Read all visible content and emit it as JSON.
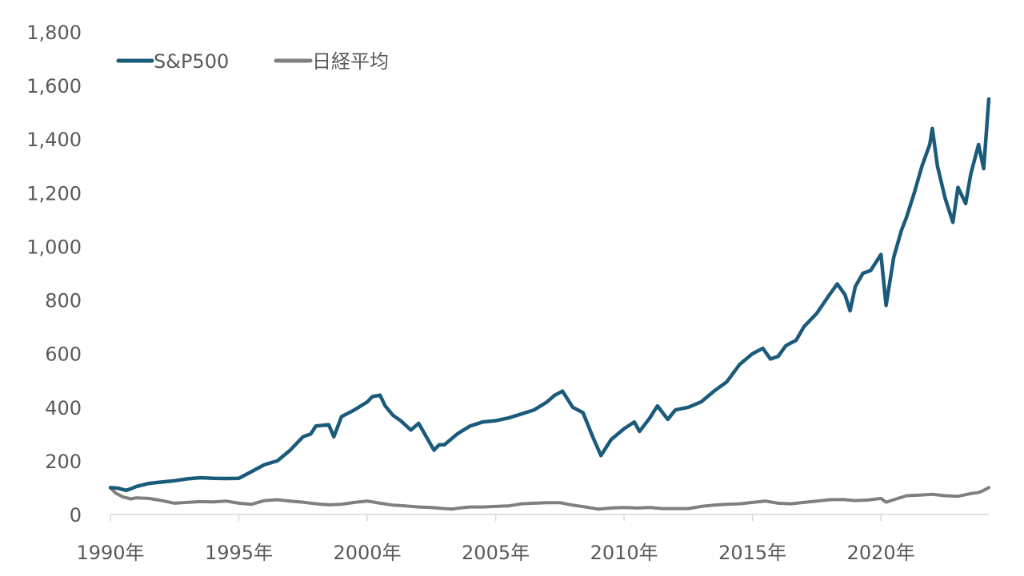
{
  "chart_data": {
    "type": "line",
    "xlabel": "",
    "ylabel": "",
    "ylim": [
      0,
      1800
    ],
    "xlim": [
      1990,
      2024.2
    ],
    "grid": false,
    "legend_position": "top-left",
    "y_ticks": [
      "0",
      "200",
      "400",
      "600",
      "800",
      "1,000",
      "1,200",
      "1,400",
      "1,600",
      "1,800"
    ],
    "y_tick_values": [
      0,
      200,
      400,
      600,
      800,
      1000,
      1200,
      1400,
      1600,
      1800
    ],
    "x_ticks": [
      "1990年",
      "1995年",
      "2000年",
      "2005年",
      "2010年",
      "2015年",
      "2020年"
    ],
    "x_tick_values": [
      1990,
      1995,
      2000,
      2005,
      2010,
      2015,
      2020
    ],
    "series": [
      {
        "name": "S&P500",
        "color": "#1a5a7a",
        "x": [
          1990.0,
          1990.3,
          1990.6,
          1990.8,
          1991.0,
          1991.5,
          1992.0,
          1992.5,
          1993.0,
          1993.5,
          1994.0,
          1994.5,
          1995.0,
          1995.5,
          1996.0,
          1996.5,
          1997.0,
          1997.5,
          1997.8,
          1998.0,
          1998.5,
          1998.7,
          1999.0,
          1999.5,
          2000.0,
          2000.2,
          2000.5,
          2000.7,
          2001.0,
          2001.3,
          2001.7,
          2002.0,
          2002.3,
          2002.6,
          2002.8,
          2003.0,
          2003.5,
          2004.0,
          2004.5,
          2005.0,
          2005.5,
          2006.0,
          2006.5,
          2007.0,
          2007.3,
          2007.6,
          2007.8,
          2008.0,
          2008.4,
          2008.8,
          2009.1,
          2009.5,
          2010.0,
          2010.4,
          2010.6,
          2011.0,
          2011.3,
          2011.7,
          2012.0,
          2012.5,
          2013.0,
          2013.5,
          2014.0,
          2014.5,
          2015.0,
          2015.4,
          2015.7,
          2016.0,
          2016.3,
          2016.7,
          2017.0,
          2017.5,
          2018.0,
          2018.3,
          2018.6,
          2018.8,
          2019.0,
          2019.3,
          2019.6,
          2020.0,
          2020.2,
          2020.5,
          2020.8,
          2021.0,
          2021.3,
          2021.6,
          2021.9,
          2022.0,
          2022.2,
          2022.5,
          2022.8,
          2023.0,
          2023.3,
          2023.5,
          2023.8,
          2024.0,
          2024.2
        ],
        "values": [
          100,
          98,
          90,
          96,
          104,
          116,
          121,
          126,
          133,
          137,
          135,
          134,
          135,
          160,
          186,
          200,
          240,
          290,
          300,
          330,
          335,
          290,
          365,
          390,
          420,
          440,
          445,
          405,
          370,
          350,
          315,
          340,
          290,
          240,
          260,
          260,
          300,
          330,
          345,
          350,
          360,
          375,
          390,
          420,
          445,
          460,
          430,
          400,
          380,
          285,
          220,
          280,
          320,
          345,
          310,
          360,
          405,
          355,
          390,
          400,
          420,
          460,
          495,
          560,
          600,
          620,
          580,
          590,
          630,
          650,
          700,
          750,
          820,
          860,
          820,
          760,
          850,
          900,
          910,
          970,
          780,
          960,
          1060,
          1110,
          1200,
          1300,
          1380,
          1440,
          1300,
          1180,
          1090,
          1220,
          1160,
          1270,
          1380,
          1290,
          1550
        ]
      },
      {
        "name": "日経平均",
        "color": "#7f7f7f",
        "x": [
          1990.0,
          1990.2,
          1990.5,
          1990.8,
          1991.0,
          1991.5,
          1992.0,
          1992.5,
          1993.0,
          1993.5,
          1994.0,
          1994.5,
          1995.0,
          1995.5,
          1996.0,
          1996.5,
          1997.0,
          1997.5,
          1998.0,
          1998.5,
          1999.0,
          1999.5,
          2000.0,
          2000.5,
          2001.0,
          2001.5,
          2002.0,
          2002.5,
          2003.0,
          2003.3,
          2003.6,
          2004.0,
          2004.5,
          2005.0,
          2005.5,
          2006.0,
          2006.5,
          2007.0,
          2007.5,
          2008.0,
          2008.5,
          2009.0,
          2009.5,
          2010.0,
          2010.5,
          2011.0,
          2011.5,
          2012.0,
          2012.5,
          2013.0,
          2013.5,
          2014.0,
          2014.5,
          2015.0,
          2015.5,
          2016.0,
          2016.5,
          2017.0,
          2017.5,
          2018.0,
          2018.5,
          2019.0,
          2019.5,
          2020.0,
          2020.2,
          2020.5,
          2021.0,
          2021.5,
          2022.0,
          2022.5,
          2023.0,
          2023.5,
          2023.8,
          2024.0,
          2024.2
        ],
        "values": [
          100,
          80,
          65,
          58,
          62,
          60,
          52,
          42,
          45,
          48,
          47,
          50,
          42,
          38,
          52,
          55,
          50,
          46,
          40,
          36,
          38,
          45,
          50,
          42,
          35,
          32,
          28,
          26,
          22,
          20,
          24,
          28,
          28,
          30,
          32,
          40,
          42,
          44,
          44,
          35,
          28,
          20,
          24,
          26,
          24,
          26,
          22,
          22,
          22,
          30,
          35,
          38,
          40,
          45,
          50,
          42,
          40,
          45,
          50,
          55,
          56,
          52,
          54,
          60,
          46,
          55,
          70,
          72,
          75,
          70,
          68,
          78,
          82,
          90,
          100
        ]
      }
    ]
  }
}
